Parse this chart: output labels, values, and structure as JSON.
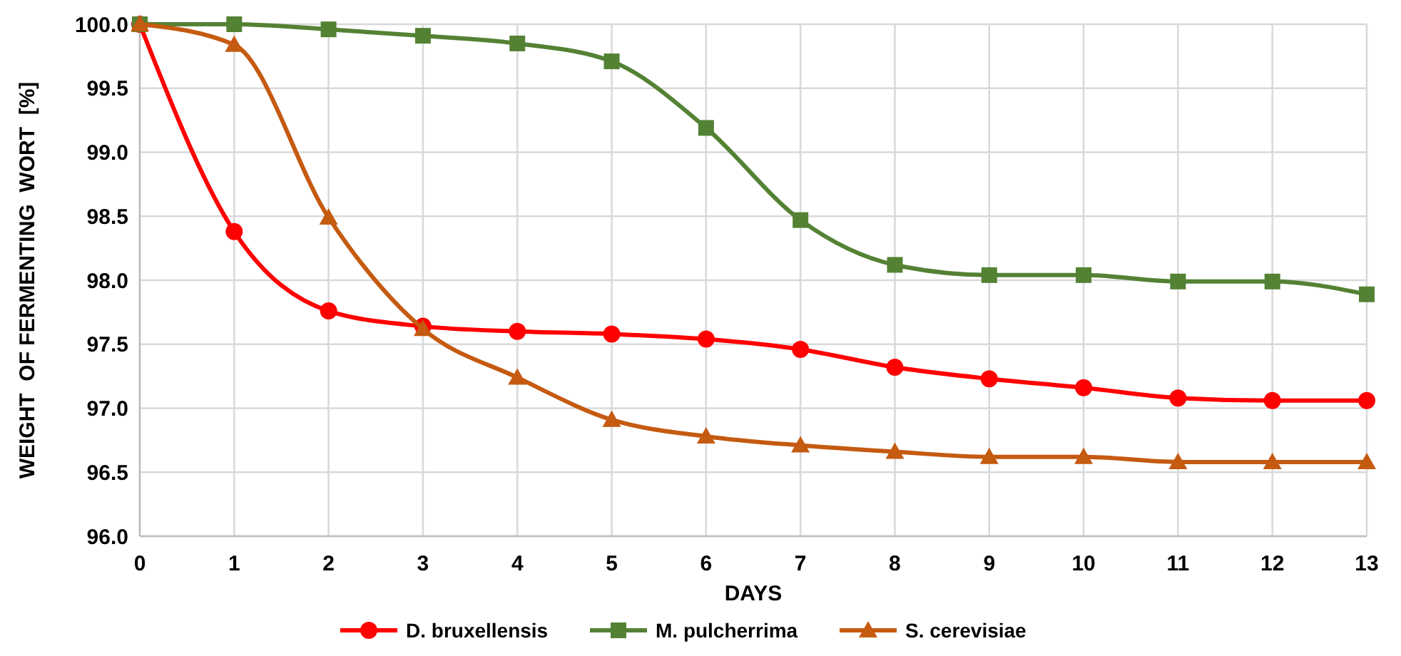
{
  "chart_data": {
    "type": "line",
    "xlabel": "DAYS",
    "ylabel": "WEIGHT  OF FERMENTING  WORT  [%]",
    "x": [
      0,
      1,
      2,
      3,
      4,
      5,
      6,
      7,
      8,
      9,
      10,
      11,
      12,
      13
    ],
    "xlim": [
      0,
      13
    ],
    "xticks": [
      0,
      1,
      2,
      3,
      4,
      5,
      6,
      7,
      8,
      9,
      10,
      11,
      12,
      13
    ],
    "ylim": [
      96,
      100
    ],
    "yticks": [
      {
        "value": 96,
        "label": "96.0"
      },
      {
        "value": 96.5,
        "label": "96.5"
      },
      {
        "value": 97,
        "label": "97.0"
      },
      {
        "value": 97.5,
        "label": "97.5"
      },
      {
        "value": 98,
        "label": "98.0"
      },
      {
        "value": 98.5,
        "label": "98.5"
      },
      {
        "value": 99,
        "label": "99.0"
      },
      {
        "value": 99.5,
        "label": "99.5"
      },
      {
        "value": 100,
        "label": "100.0"
      }
    ],
    "grid": true,
    "legend": "bottom",
    "series": [
      {
        "name": "D. bruxellensis",
        "color": "#ff0000",
        "marker": "circle",
        "values": [
          100,
          98.38,
          97.76,
          97.64,
          97.6,
          97.58,
          97.54,
          97.46,
          97.32,
          97.23,
          97.16,
          97.08,
          97.06,
          97.06
        ]
      },
      {
        "name": "M. pulcherrima",
        "color": "#548235",
        "marker": "square",
        "values": [
          100,
          100,
          99.96,
          99.91,
          99.85,
          99.71,
          99.19,
          98.47,
          98.12,
          98.04,
          98.04,
          97.99,
          97.99,
          97.89
        ]
      },
      {
        "name": "S. cerevisiae",
        "color": "#c55a11",
        "marker": "triangle",
        "values": [
          100,
          99.84,
          98.49,
          97.62,
          97.24,
          96.91,
          96.78,
          96.71,
          96.66,
          96.62,
          96.62,
          96.58,
          96.58,
          96.58
        ]
      }
    ]
  }
}
